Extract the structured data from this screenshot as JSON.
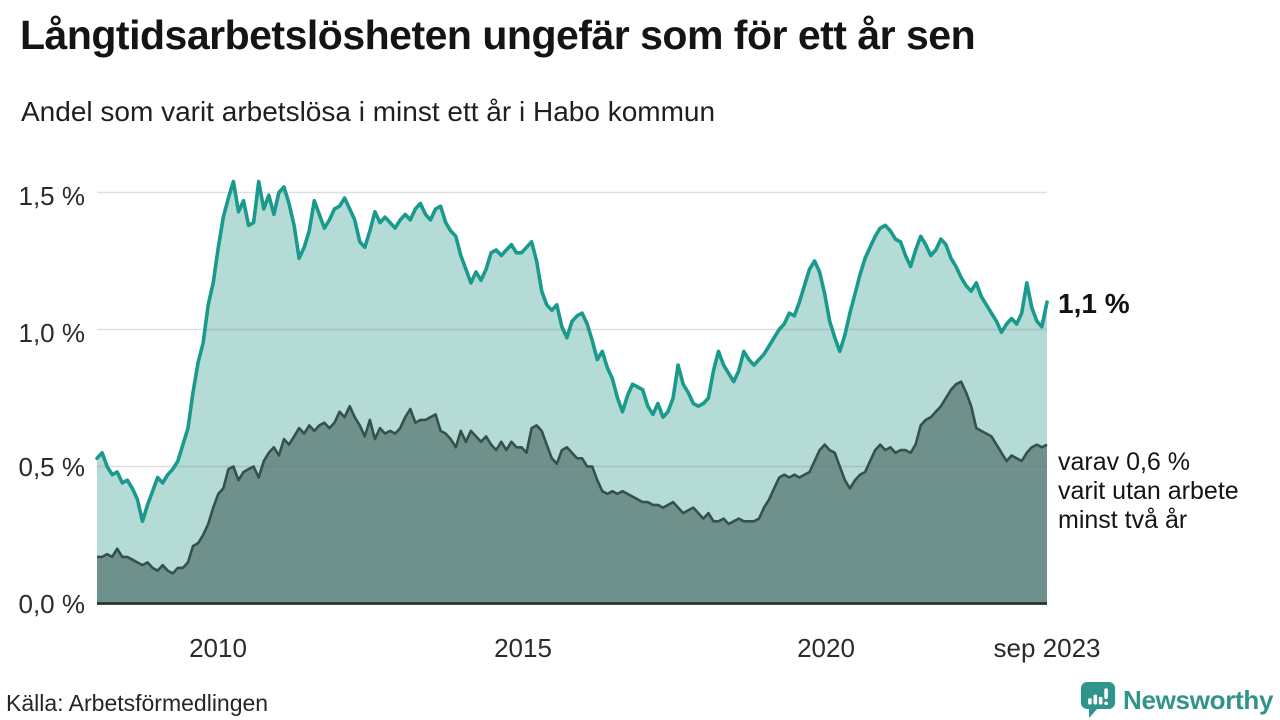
{
  "header": {
    "title": "Långtidsarbetslösheten ungefär som för ett år sen",
    "subtitle": "Andel som varit arbetslösa i minst ett år i Habo kommun"
  },
  "footer": {
    "source": "Källa: Arbetsförmedlingen",
    "brand": "Newsworthy"
  },
  "chart_data": {
    "type": "area",
    "title": "Långtidsarbetslösheten ungefär som för ett år sen",
    "subtitle": "Andel som varit arbetslösa i minst ett år i Habo kommun",
    "unit": "%",
    "frequency": "monthly",
    "x_start": "2008-01",
    "x_end": "2023-09",
    "x_axis": {
      "tick_labels": [
        "2010",
        "2015",
        "2020",
        "sep 2023"
      ]
    },
    "y_axis": {
      "tick_labels": [
        "0,0 %",
        "0,5 %",
        "1,0 %",
        "1,5 %"
      ],
      "min": 0.0,
      "max": 1.5
    },
    "grid": "horizontal",
    "axis_color": "#263431",
    "gridline_color": "rgba(100,108,118,0.22)",
    "annotations": {
      "latest_value_label": "1,1 %",
      "secondary_lines": [
        "varav 0,6 %",
        "varit utan arbete",
        "minst två år"
      ]
    },
    "series": [
      {
        "name": "Andel arbetslösa minst ett år",
        "color": "#1a9a8c",
        "fill": "#b4dbd5",
        "latest_value": 1.1,
        "values": [
          0.53,
          0.55,
          0.5,
          0.47,
          0.48,
          0.44,
          0.45,
          0.42,
          0.38,
          0.3,
          0.36,
          0.41,
          0.46,
          0.44,
          0.47,
          0.49,
          0.52,
          0.58,
          0.64,
          0.77,
          0.88,
          0.95,
          1.09,
          1.17,
          1.3,
          1.41,
          1.48,
          1.54,
          1.43,
          1.47,
          1.38,
          1.39,
          1.54,
          1.44,
          1.49,
          1.42,
          1.5,
          1.52,
          1.46,
          1.38,
          1.26,
          1.3,
          1.36,
          1.47,
          1.42,
          1.37,
          1.4,
          1.44,
          1.45,
          1.48,
          1.44,
          1.4,
          1.32,
          1.3,
          1.36,
          1.43,
          1.39,
          1.41,
          1.39,
          1.37,
          1.4,
          1.42,
          1.4,
          1.44,
          1.46,
          1.42,
          1.4,
          1.44,
          1.45,
          1.39,
          1.36,
          1.34,
          1.27,
          1.22,
          1.17,
          1.21,
          1.18,
          1.22,
          1.28,
          1.29,
          1.27,
          1.29,
          1.31,
          1.28,
          1.28,
          1.3,
          1.32,
          1.25,
          1.14,
          1.09,
          1.07,
          1.09,
          1.01,
          0.97,
          1.03,
          1.05,
          1.06,
          1.02,
          0.96,
          0.89,
          0.92,
          0.86,
          0.82,
          0.75,
          0.7,
          0.76,
          0.8,
          0.79,
          0.78,
          0.72,
          0.69,
          0.73,
          0.68,
          0.7,
          0.75,
          0.87,
          0.8,
          0.77,
          0.73,
          0.72,
          0.73,
          0.75,
          0.85,
          0.92,
          0.87,
          0.84,
          0.81,
          0.85,
          0.92,
          0.89,
          0.87,
          0.89,
          0.91,
          0.94,
          0.97,
          1.0,
          1.02,
          1.06,
          1.05,
          1.1,
          1.16,
          1.22,
          1.25,
          1.21,
          1.13,
          1.03,
          0.97,
          0.92,
          0.98,
          1.06,
          1.13,
          1.2,
          1.26,
          1.3,
          1.34,
          1.37,
          1.38,
          1.36,
          1.33,
          1.32,
          1.27,
          1.23,
          1.29,
          1.34,
          1.31,
          1.27,
          1.29,
          1.33,
          1.31,
          1.26,
          1.23,
          1.19,
          1.16,
          1.14,
          1.17,
          1.12,
          1.09,
          1.06,
          1.03,
          0.99,
          1.02,
          1.04,
          1.02,
          1.06,
          1.17,
          1.08,
          1.03,
          1.01,
          1.1
        ]
      },
      {
        "name": "varav utan arbete minst två år",
        "color": "#35514c",
        "fill": "#6e918c",
        "latest_value": 0.6,
        "values": [
          0.17,
          0.17,
          0.18,
          0.17,
          0.2,
          0.17,
          0.17,
          0.16,
          0.15,
          0.14,
          0.15,
          0.13,
          0.12,
          0.14,
          0.12,
          0.11,
          0.13,
          0.13,
          0.15,
          0.21,
          0.22,
          0.25,
          0.29,
          0.35,
          0.4,
          0.42,
          0.49,
          0.5,
          0.45,
          0.48,
          0.49,
          0.5,
          0.46,
          0.52,
          0.55,
          0.57,
          0.54,
          0.6,
          0.58,
          0.61,
          0.64,
          0.62,
          0.65,
          0.63,
          0.65,
          0.66,
          0.64,
          0.66,
          0.7,
          0.68,
          0.72,
          0.68,
          0.65,
          0.61,
          0.67,
          0.6,
          0.64,
          0.62,
          0.63,
          0.62,
          0.64,
          0.68,
          0.71,
          0.66,
          0.67,
          0.67,
          0.68,
          0.69,
          0.63,
          0.62,
          0.6,
          0.57,
          0.63,
          0.59,
          0.63,
          0.61,
          0.59,
          0.61,
          0.58,
          0.56,
          0.59,
          0.56,
          0.59,
          0.57,
          0.57,
          0.55,
          0.64,
          0.65,
          0.63,
          0.58,
          0.53,
          0.51,
          0.56,
          0.57,
          0.55,
          0.53,
          0.53,
          0.5,
          0.5,
          0.45,
          0.41,
          0.4,
          0.41,
          0.4,
          0.41,
          0.4,
          0.39,
          0.38,
          0.37,
          0.37,
          0.36,
          0.36,
          0.35,
          0.36,
          0.37,
          0.35,
          0.33,
          0.34,
          0.35,
          0.33,
          0.31,
          0.33,
          0.3,
          0.3,
          0.31,
          0.29,
          0.3,
          0.31,
          0.3,
          0.3,
          0.3,
          0.31,
          0.35,
          0.38,
          0.42,
          0.46,
          0.47,
          0.46,
          0.47,
          0.46,
          0.47,
          0.48,
          0.52,
          0.56,
          0.58,
          0.56,
          0.55,
          0.5,
          0.45,
          0.42,
          0.45,
          0.47,
          0.48,
          0.52,
          0.56,
          0.58,
          0.56,
          0.57,
          0.55,
          0.56,
          0.56,
          0.55,
          0.58,
          0.65,
          0.67,
          0.68,
          0.7,
          0.72,
          0.75,
          0.78,
          0.8,
          0.81,
          0.77,
          0.72,
          0.64,
          0.63,
          0.62,
          0.61,
          0.58,
          0.55,
          0.52,
          0.54,
          0.53,
          0.52,
          0.55,
          0.57,
          0.58,
          0.57,
          0.58
        ]
      }
    ]
  }
}
